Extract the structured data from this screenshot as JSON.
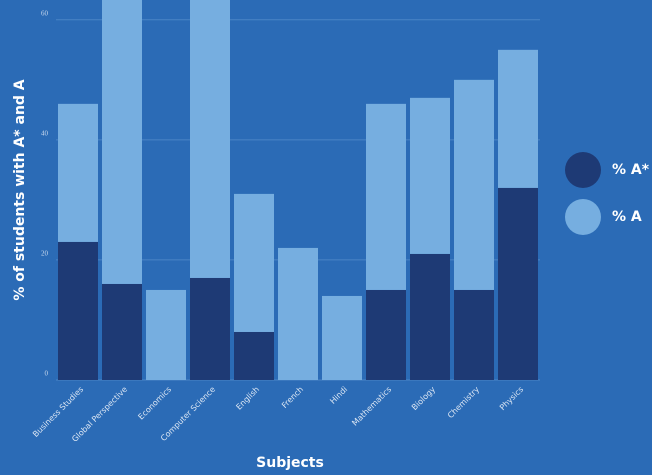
{
  "chart_data": {
    "type": "stacked_bar",
    "x_label": "Subjects",
    "y_label": "% of students with A* and A",
    "categories": [
      "Business Studies",
      "Global Perspective",
      "Economics",
      "Computer Science",
      "English",
      "French",
      "Hindi",
      "Mathematics",
      "Biology",
      "Chemistry",
      "Physics"
    ],
    "series": [
      {
        "name": "% A*",
        "color": "#1e3a75",
        "values": [
          23,
          16,
          0,
          17,
          8,
          0,
          0,
          15,
          21,
          15,
          32
        ]
      },
      {
        "name": "% A",
        "color": "#76aee0",
        "values": [
          23,
          50,
          15,
          48,
          23,
          22,
          14,
          31,
          26,
          35,
          23
        ]
      }
    ],
    "ylim": [
      0,
      63.3
    ],
    "yticks": [
      0,
      20,
      40,
      60
    ],
    "grid": true,
    "legend": "right"
  }
}
